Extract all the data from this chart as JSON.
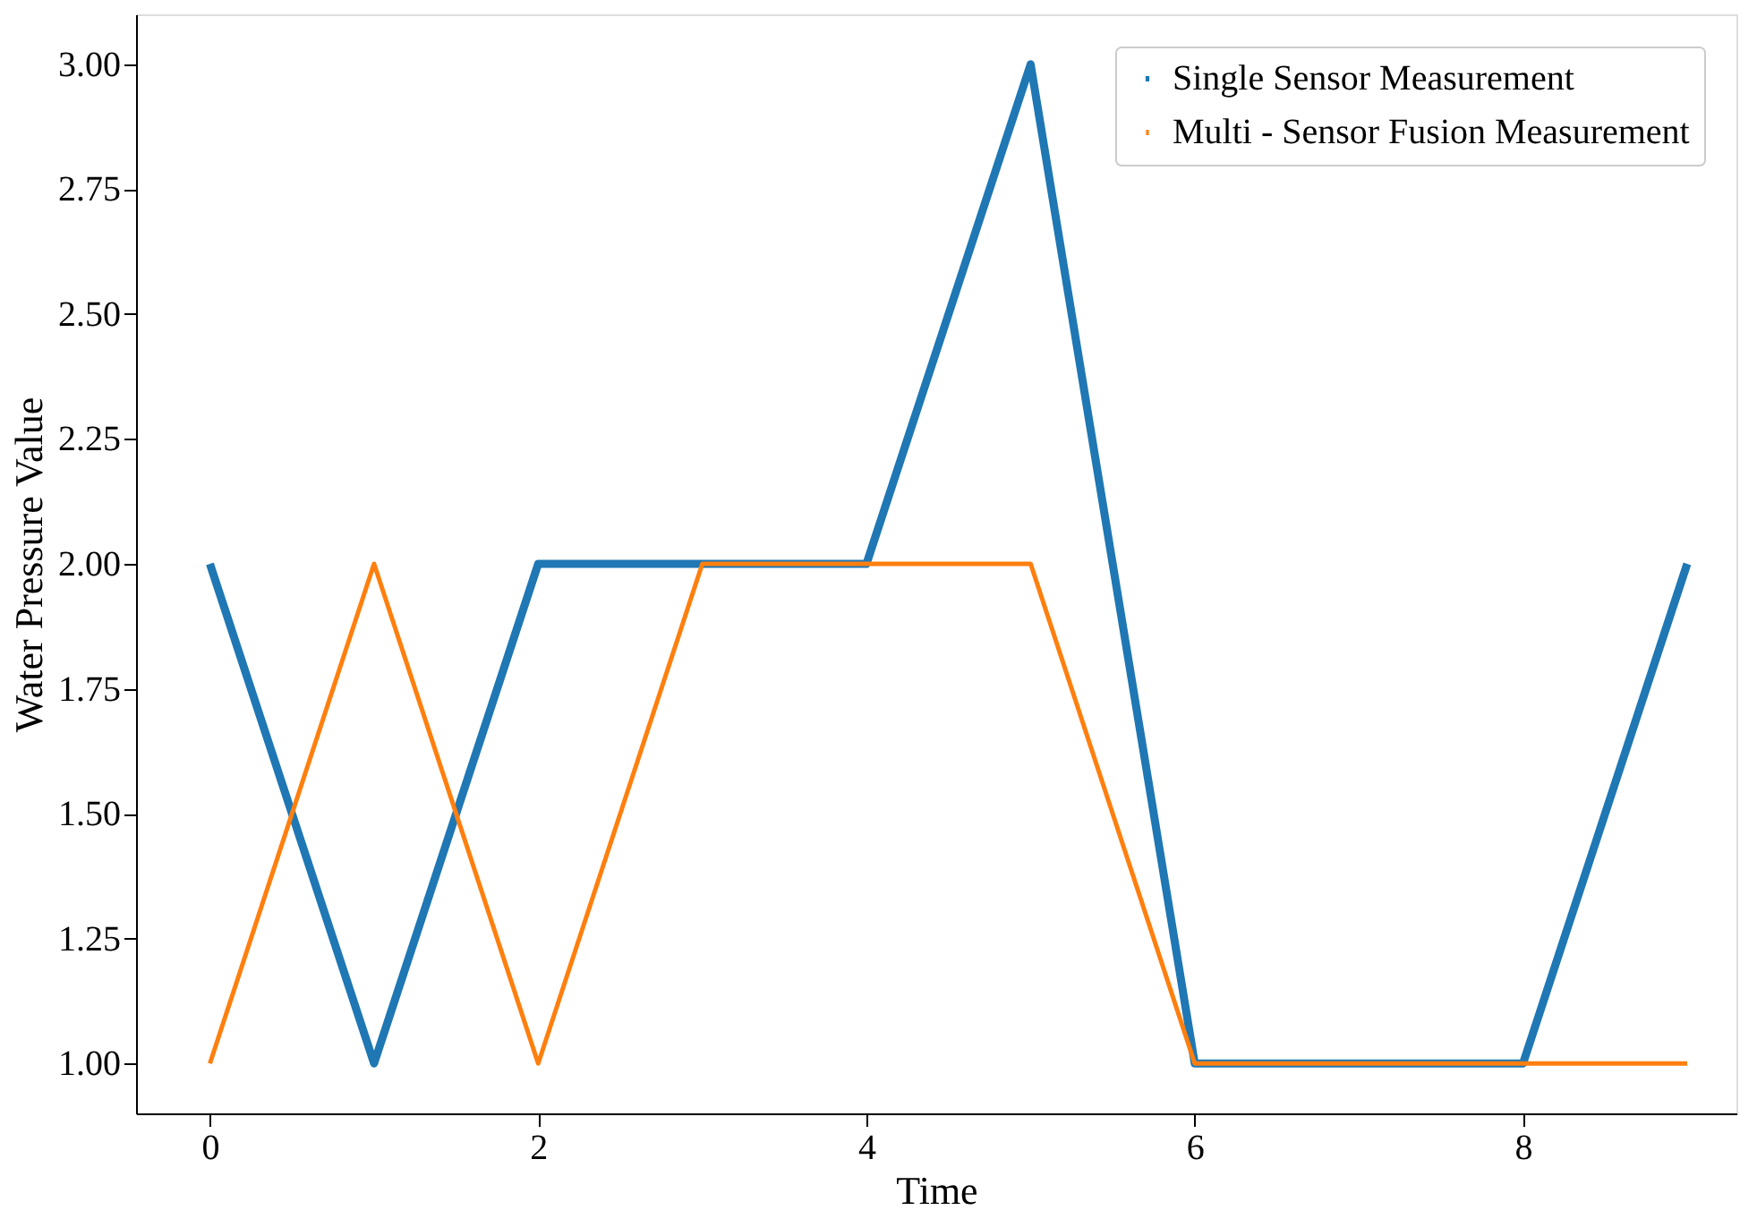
{
  "chart_data": {
    "type": "line",
    "xlabel": "Time",
    "ylabel": "Water Pressure Value",
    "x": [
      0,
      1,
      2,
      3,
      4,
      5,
      6,
      7,
      8,
      9
    ],
    "series": [
      {
        "name": "Single Sensor Measurement",
        "color": "#1f77b4",
        "values": [
          2,
          1,
          2,
          2,
          2,
          3,
          1,
          1,
          1,
          2
        ]
      },
      {
        "name": "Multi - Sensor Fusion Measurement",
        "color": "#ff7f0e",
        "values": [
          1,
          2,
          1,
          2,
          2,
          2,
          1,
          1,
          1,
          1
        ]
      }
    ],
    "xlim": [
      -0.45,
      9.3
    ],
    "xticks": [
      0,
      2,
      4,
      6,
      8
    ],
    "ylim": [
      0.9,
      3.1
    ],
    "yticks": [
      {
        "value": 1,
        "label": "1.00"
      },
      {
        "value": 1.25,
        "label": "1.25"
      },
      {
        "value": 1.5,
        "label": "1.50"
      },
      {
        "value": 1.75,
        "label": "1.75"
      },
      {
        "value": 2,
        "label": "2.00"
      },
      {
        "value": 2.25,
        "label": "2.25"
      },
      {
        "value": 2.5,
        "label": "2.50"
      },
      {
        "value": 2.75,
        "label": "2.75"
      },
      {
        "value": 3,
        "label": "3.00"
      }
    ],
    "grid": false,
    "legend": "top right",
    "marker": "none",
    "line_style": "solid"
  }
}
